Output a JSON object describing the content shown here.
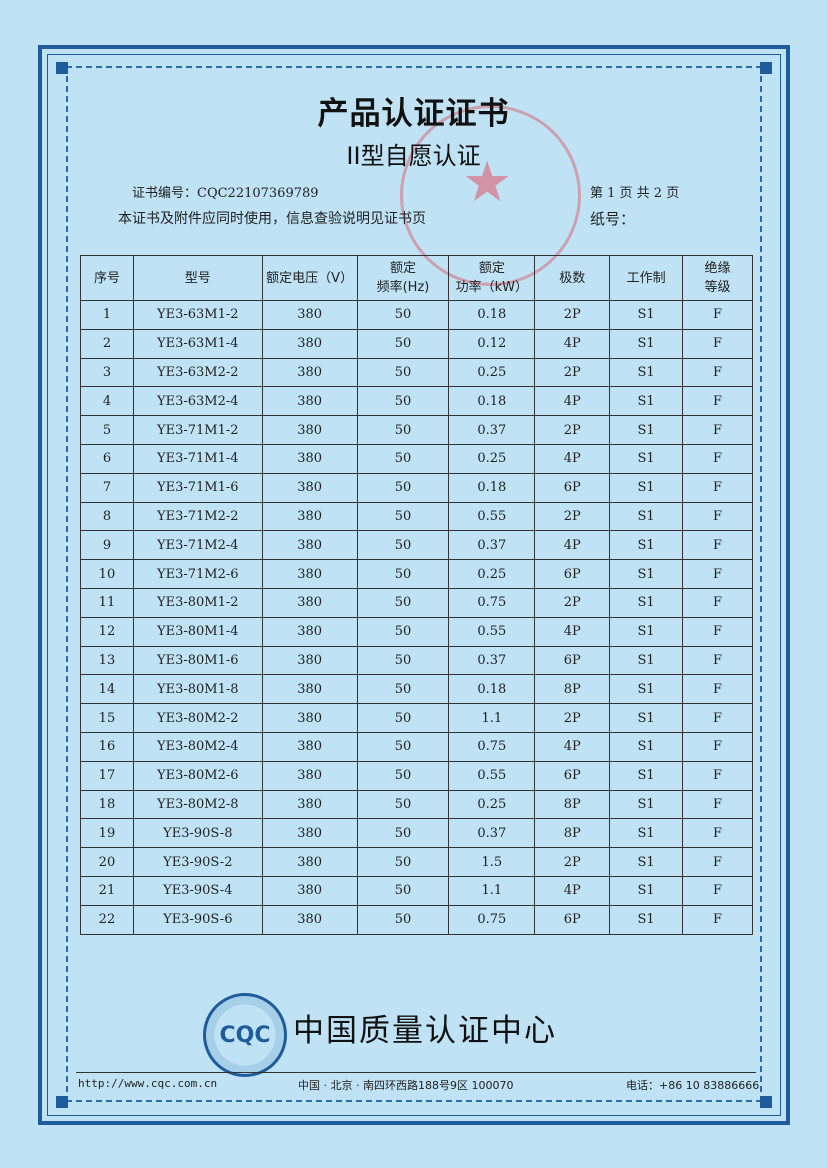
{
  "document": {
    "title": "产品认证证书",
    "subtitle": "II型自愿认证",
    "cert_number": "证书编号：CQC22107369789",
    "notice": "本证书及附件应同时使用，信息查验说明见证书页",
    "page_info": "第 1 页  共 2 页",
    "paper_no": "纸号："
  },
  "table": {
    "headers": [
      "序号",
      "型号",
      "额定电压（V）",
      "额定\n频率(Hz)",
      "额定\n功率（kW）",
      "极数",
      "工作制",
      "绝缘\n等级"
    ],
    "rows": [
      [
        "1",
        "YE3-63M1-2",
        "380",
        "50",
        "0.18",
        "2P",
        "S1",
        "F"
      ],
      [
        "2",
        "YE3-63M1-4",
        "380",
        "50",
        "0.12",
        "4P",
        "S1",
        "F"
      ],
      [
        "3",
        "YE3-63M2-2",
        "380",
        "50",
        "0.25",
        "2P",
        "S1",
        "F"
      ],
      [
        "4",
        "YE3-63M2-4",
        "380",
        "50",
        "0.18",
        "4P",
        "S1",
        "F"
      ],
      [
        "5",
        "YE3-71M1-2",
        "380",
        "50",
        "0.37",
        "2P",
        "S1",
        "F"
      ],
      [
        "6",
        "YE3-71M1-4",
        "380",
        "50",
        "0.25",
        "4P",
        "S1",
        "F"
      ],
      [
        "7",
        "YE3-71M1-6",
        "380",
        "50",
        "0.18",
        "6P",
        "S1",
        "F"
      ],
      [
        "8",
        "YE3-71M2-2",
        "380",
        "50",
        "0.55",
        "2P",
        "S1",
        "F"
      ],
      [
        "9",
        "YE3-71M2-4",
        "380",
        "50",
        "0.37",
        "4P",
        "S1",
        "F"
      ],
      [
        "10",
        "YE3-71M2-6",
        "380",
        "50",
        "0.25",
        "6P",
        "S1",
        "F"
      ],
      [
        "11",
        "YE3-80M1-2",
        "380",
        "50",
        "0.75",
        "2P",
        "S1",
        "F"
      ],
      [
        "12",
        "YE3-80M1-4",
        "380",
        "50",
        "0.55",
        "4P",
        "S1",
        "F"
      ],
      [
        "13",
        "YE3-80M1-6",
        "380",
        "50",
        "0.37",
        "6P",
        "S1",
        "F"
      ],
      [
        "14",
        "YE3-80M1-8",
        "380",
        "50",
        "0.18",
        "8P",
        "S1",
        "F"
      ],
      [
        "15",
        "YE3-80M2-2",
        "380",
        "50",
        "1.1",
        "2P",
        "S1",
        "F"
      ],
      [
        "16",
        "YE3-80M2-4",
        "380",
        "50",
        "0.75",
        "4P",
        "S1",
        "F"
      ],
      [
        "17",
        "YE3-80M2-6",
        "380",
        "50",
        "0.55",
        "6P",
        "S1",
        "F"
      ],
      [
        "18",
        "YE3-80M2-8",
        "380",
        "50",
        "0.25",
        "8P",
        "S1",
        "F"
      ],
      [
        "19",
        "YE3-90S-8",
        "380",
        "50",
        "0.37",
        "8P",
        "S1",
        "F"
      ],
      [
        "20",
        "YE3-90S-2",
        "380",
        "50",
        "1.5",
        "2P",
        "S1",
        "F"
      ],
      [
        "21",
        "YE3-90S-4",
        "380",
        "50",
        "1.1",
        "4P",
        "S1",
        "F"
      ],
      [
        "22",
        "YE3-90S-6",
        "380",
        "50",
        "0.75",
        "6P",
        "S1",
        "F"
      ]
    ]
  },
  "footer": {
    "logo_text": "CQC",
    "org_name": "中国质量认证中心",
    "website": "http://www.cqc.com.cn",
    "address": "中国 · 北京 · 南四环西路188号9区   100070",
    "phone": "电话：+86 10 83886666"
  },
  "colors": {
    "background": "#bfe3f5",
    "border": "#1e5c9c",
    "stamp": "#dc505a"
  }
}
